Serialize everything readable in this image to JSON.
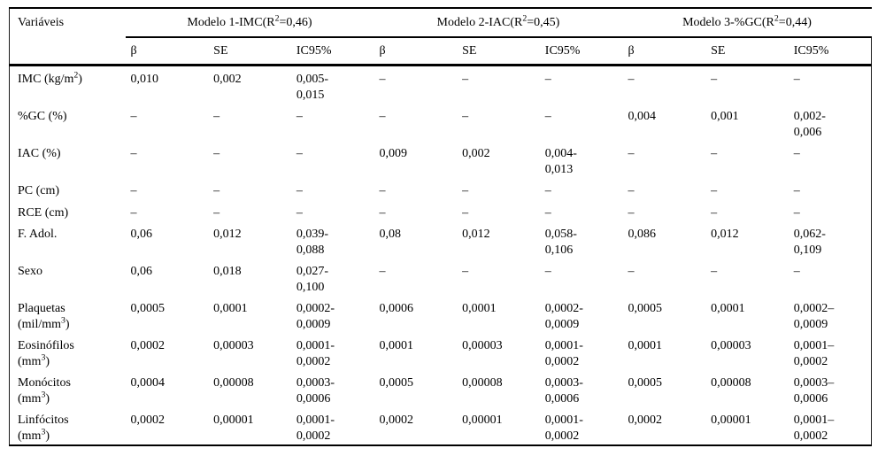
{
  "table": {
    "corner_header": "Variáveis",
    "groups": [
      {
        "title": "Modelo 1-IMC(R^2=0,46)"
      },
      {
        "title": "Modelo 2-IAC(R^2=0,45)"
      },
      {
        "title": "Modelo 3-%GC(R^2=0,44)"
      }
    ],
    "sub_headers": [
      "β",
      "SE",
      "IC95%",
      "β",
      "SE",
      "IC95%",
      "β",
      "SE",
      "IC95%"
    ],
    "empty_marker": "–",
    "rows": [
      {
        "label": [
          "IMC (kg/m^2)"
        ],
        "cells": [
          "0,010",
          "0,002",
          [
            "0,005-",
            "0,015"
          ],
          "–",
          "–",
          "–",
          "–",
          "–",
          "–"
        ]
      },
      {
        "label": [
          "%GC (%)"
        ],
        "cells": [
          "–",
          "–",
          "–",
          "–",
          "–",
          "–",
          "0,004",
          "0,001",
          [
            "0,002-",
            "0,006"
          ]
        ]
      },
      {
        "label": [
          "IAC (%)"
        ],
        "cells": [
          "–",
          "–",
          "–",
          "0,009",
          "0,002",
          [
            "0,004-",
            "0,013"
          ],
          "–",
          "–",
          "–"
        ]
      },
      {
        "label": [
          "PC (cm)"
        ],
        "cells": [
          "–",
          "–",
          "–",
          "–",
          "–",
          "–",
          "–",
          "–",
          "–"
        ]
      },
      {
        "label": [
          "RCE (cm)"
        ],
        "cells": [
          "–",
          "–",
          "–",
          "–",
          "–",
          "–",
          "–",
          "–",
          "–"
        ]
      },
      {
        "label": [
          "F. Adol."
        ],
        "cells": [
          "0,06",
          "0,012",
          [
            "0,039-",
            "0,088"
          ],
          "0,08",
          "0,012",
          [
            "0,058-",
            "0,106"
          ],
          "0,086",
          "0,012",
          [
            "0,062-",
            "0,109"
          ]
        ]
      },
      {
        "label": [
          "Sexo"
        ],
        "cells": [
          "0,06",
          "0,018",
          [
            "0,027-",
            "0,100"
          ],
          "–",
          "–",
          "–",
          "–",
          "–",
          "–"
        ]
      },
      {
        "label": [
          "Plaquetas",
          "(mil/mm^3)"
        ],
        "cells": [
          "0,0005",
          "0,0001",
          [
            "0,0002-",
            "0,0009"
          ],
          "0,0006",
          "0,0001",
          [
            "0,0002-",
            "0,0009"
          ],
          "0,0005",
          "0,0001",
          [
            "0,0002–",
            "0,0009"
          ]
        ]
      },
      {
        "label": [
          "Eosinófilos",
          "(mm^3)"
        ],
        "cells": [
          "0,0002",
          "0,00003",
          [
            "0,0001-",
            "0,0002"
          ],
          "0,0001",
          "0,00003",
          [
            "0,0001-",
            "0,0002"
          ],
          "0,0001",
          "0,00003",
          [
            "0,0001–",
            "0,0002"
          ]
        ]
      },
      {
        "label": [
          "Monócitos",
          "(mm^3)"
        ],
        "cells": [
          "0,0004",
          "0,00008",
          [
            "0,0003-",
            "0,0006"
          ],
          "0,0005",
          "0,00008",
          [
            "0,0003-",
            "0,0006"
          ],
          "0,0005",
          "0,00008",
          [
            "0,0003–",
            "0,0006"
          ]
        ]
      },
      {
        "label": [
          "Linfócitos",
          "(mm^3)"
        ],
        "cells": [
          "0,0002",
          "0,00001",
          [
            "0,0001-",
            "0,0002"
          ],
          "0,0002",
          "0,00001",
          [
            "0,0001-",
            "0,0002"
          ],
          "0,0002",
          "0,00001",
          [
            "0,0001–",
            "0,0002"
          ]
        ]
      }
    ]
  }
}
